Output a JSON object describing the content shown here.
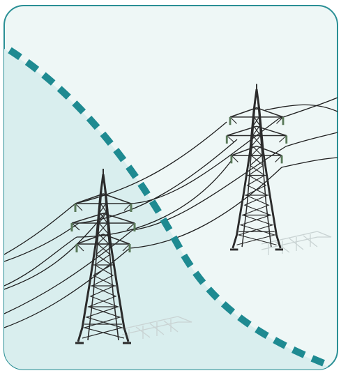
{
  "illustration": {
    "subject": "power-transmission-line-crossing-boundary",
    "icons": [
      "transmission-tower-icon",
      "power-line-icon",
      "dashed-boundary-icon"
    ]
  },
  "colors": {
    "frame_border": "#2a8f95",
    "background_light": "#eef7f6",
    "background_shaded": "#d9eeee",
    "boundary_dash": "#1e8a91",
    "tower": "#2b2b2b",
    "wire": "#1f1f1f",
    "shadow": "#c9d3d3"
  }
}
